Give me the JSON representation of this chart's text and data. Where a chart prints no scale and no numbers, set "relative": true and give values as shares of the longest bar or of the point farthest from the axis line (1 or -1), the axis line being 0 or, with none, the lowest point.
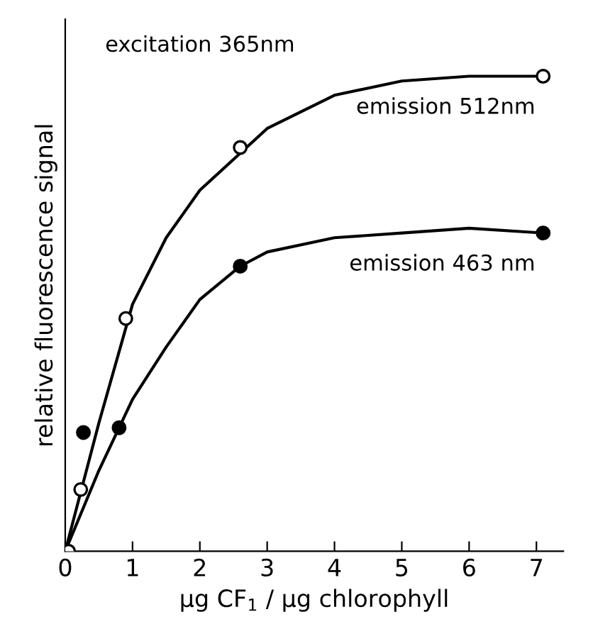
{
  "chart_data": {
    "type": "scatter",
    "relative": true,
    "xlabel": "μg CF$_{1}$ / μg chlorophyll",
    "ylabel": "relative fluorescence signal",
    "xlim": [
      0,
      7.4
    ],
    "xticks": [
      0,
      1,
      2,
      3,
      4,
      5,
      6,
      7
    ],
    "grid": false,
    "legend": false,
    "annotations": [
      "excitation 365nm"
    ],
    "series": [
      {
        "type": "line",
        "color": "#000000",
        "marker": "none",
        "x": [
          0,
          0.5,
          1,
          1.5,
          2,
          3,
          4,
          5,
          6,
          7.1
        ],
        "values": [
          0,
          0.27,
          0.52,
          0.66,
          0.76,
          0.89,
          0.96,
          0.99,
          1.0,
          1.0
        ]
      },
      {
        "type": "line",
        "color": "#000000",
        "marker": "none",
        "x": [
          0,
          0.5,
          1,
          1.5,
          2,
          2.6,
          3,
          4,
          5,
          6,
          7.1
        ],
        "values": [
          0,
          0.17,
          0.32,
          0.43,
          0.53,
          0.6,
          0.63,
          0.66,
          0.67,
          0.68,
          0.67
        ]
      },
      {
        "name": "emission 512nm",
        "color": "#ffffff",
        "marker": "circle",
        "x": [
          0.05,
          0.23,
          0.9,
          2.6,
          7.1
        ],
        "values": [
          0,
          0.13,
          0.49,
          0.85,
          1.0
        ]
      },
      {
        "name": "emission 463 nm",
        "color": "#000000",
        "marker": "circle",
        "x": [
          0.27,
          0.8,
          2.6,
          7.1
        ],
        "values": [
          0.25,
          0.26,
          0.6,
          0.67
        ]
      }
    ]
  }
}
